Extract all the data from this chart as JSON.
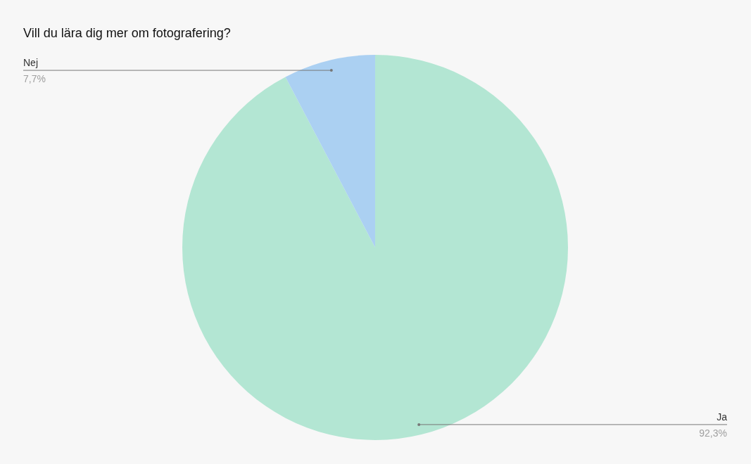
{
  "chart_data": {
    "type": "pie",
    "title": "Vill du lära dig mer om fotografering?",
    "categories": [
      "Ja",
      "Nej"
    ],
    "values": [
      92.3,
      7.7
    ],
    "colors": [
      "#b3e6d3",
      "#abd0f2"
    ],
    "value_labels": [
      "92,3%",
      "7,7%"
    ]
  }
}
